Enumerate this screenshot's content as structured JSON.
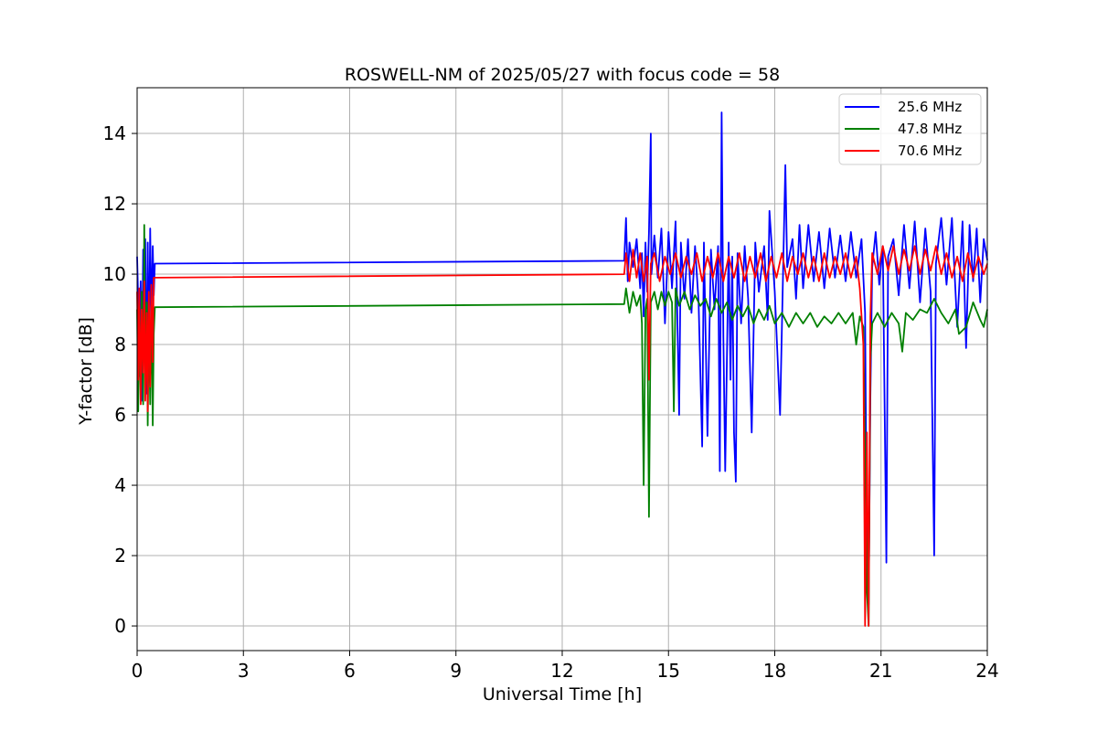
{
  "chart_data": {
    "type": "line",
    "title": "ROSWELL-NM of 2025/05/27 with focus code = 58",
    "xlabel": "Universal Time [h]",
    "ylabel": "Y-factor [dB]",
    "xlim": [
      0,
      24
    ],
    "ylim": [
      -0.7,
      15.3
    ],
    "xticks": [
      "0",
      "3",
      "6",
      "9",
      "12",
      "15",
      "18",
      "21",
      "24"
    ],
    "yticks": [
      "0",
      "2",
      "4",
      "6",
      "8",
      "10",
      "12",
      "14"
    ],
    "grid": true,
    "legend_position": "top-right",
    "series": [
      {
        "name": "25.6 MHz",
        "color": "#0000ff",
        "points": [
          [
            0.0,
            10.5
          ],
          [
            0.03,
            9.2
          ],
          [
            0.06,
            7.1
          ],
          [
            0.1,
            9.8
          ],
          [
            0.13,
            6.4
          ],
          [
            0.17,
            10.7
          ],
          [
            0.2,
            8.0
          ],
          [
            0.23,
            11.0
          ],
          [
            0.27,
            6.6
          ],
          [
            0.3,
            10.9
          ],
          [
            0.33,
            7.5
          ],
          [
            0.37,
            11.3
          ],
          [
            0.4,
            8.6
          ],
          [
            0.44,
            10.8
          ],
          [
            0.47,
            9.4
          ],
          [
            0.5,
            10.3
          ],
          [
            13.75,
            10.38
          ],
          [
            13.8,
            11.6
          ],
          [
            13.85,
            9.8
          ],
          [
            13.9,
            10.9
          ],
          [
            14.0,
            10.2
          ],
          [
            14.1,
            11.0
          ],
          [
            14.2,
            9.6
          ],
          [
            14.25,
            10.6
          ],
          [
            14.3,
            8.8
          ],
          [
            14.35,
            10.9
          ],
          [
            14.4,
            9.5
          ],
          [
            14.45,
            11.2
          ],
          [
            14.5,
            14.0
          ],
          [
            14.52,
            10.0
          ],
          [
            14.6,
            11.1
          ],
          [
            14.7,
            9.9
          ],
          [
            14.8,
            11.3
          ],
          [
            14.9,
            8.6
          ],
          [
            15.0,
            11.2
          ],
          [
            15.1,
            9.6
          ],
          [
            15.2,
            11.5
          ],
          [
            15.3,
            6.0
          ],
          [
            15.35,
            10.9
          ],
          [
            15.45,
            9.3
          ],
          [
            15.55,
            11.0
          ],
          [
            15.65,
            8.9
          ],
          [
            15.75,
            10.8
          ],
          [
            15.85,
            9.2
          ],
          [
            15.95,
            5.1
          ],
          [
            16.0,
            10.9
          ],
          [
            16.1,
            5.4
          ],
          [
            16.2,
            10.7
          ],
          [
            16.3,
            9.0
          ],
          [
            16.4,
            10.8
          ],
          [
            16.45,
            4.4
          ],
          [
            16.5,
            14.6
          ],
          [
            16.55,
            8.2
          ],
          [
            16.6,
            4.4
          ],
          [
            16.7,
            10.9
          ],
          [
            16.75,
            7.0
          ],
          [
            16.8,
            10.5
          ],
          [
            16.85,
            5.5
          ],
          [
            16.9,
            4.1
          ],
          [
            16.95,
            10.6
          ],
          [
            17.05,
            8.6
          ],
          [
            17.15,
            10.8
          ],
          [
            17.25,
            9.3
          ],
          [
            17.35,
            5.5
          ],
          [
            17.45,
            10.9
          ],
          [
            17.55,
            9.5
          ],
          [
            17.7,
            10.8
          ],
          [
            17.8,
            8.7
          ],
          [
            17.85,
            11.8
          ],
          [
            18.0,
            9.5
          ],
          [
            18.15,
            6.0
          ],
          [
            18.25,
            10.8
          ],
          [
            18.3,
            13.1
          ],
          [
            18.35,
            10.2
          ],
          [
            18.5,
            11.0
          ],
          [
            18.6,
            9.3
          ],
          [
            18.7,
            11.4
          ],
          [
            18.8,
            9.6
          ],
          [
            18.95,
            11.4
          ],
          [
            19.1,
            9.8
          ],
          [
            19.25,
            11.2
          ],
          [
            19.4,
            9.6
          ],
          [
            19.55,
            11.3
          ],
          [
            19.7,
            9.9
          ],
          [
            19.85,
            11.1
          ],
          [
            20.0,
            9.8
          ],
          [
            20.15,
            11.2
          ],
          [
            20.3,
            9.9
          ],
          [
            20.45,
            11.0
          ],
          [
            20.55,
            8.9
          ],
          [
            20.6,
            2.0
          ],
          [
            20.65,
            0.6
          ],
          [
            20.7,
            6.5
          ],
          [
            20.75,
            10.2
          ],
          [
            20.85,
            11.2
          ],
          [
            20.95,
            9.7
          ],
          [
            21.05,
            10.8
          ],
          [
            21.15,
            1.8
          ],
          [
            21.2,
            10.5
          ],
          [
            21.35,
            11.0
          ],
          [
            21.5,
            9.4
          ],
          [
            21.65,
            11.4
          ],
          [
            21.8,
            9.6
          ],
          [
            21.95,
            11.5
          ],
          [
            22.1,
            9.2
          ],
          [
            22.25,
            11.3
          ],
          [
            22.4,
            9.5
          ],
          [
            22.5,
            2.0
          ],
          [
            22.55,
            10.3
          ],
          [
            22.7,
            11.6
          ],
          [
            22.85,
            9.7
          ],
          [
            23.0,
            11.6
          ],
          [
            23.15,
            8.5
          ],
          [
            23.3,
            11.5
          ],
          [
            23.4,
            7.9
          ],
          [
            23.5,
            11.4
          ],
          [
            23.6,
            9.8
          ],
          [
            23.7,
            11.3
          ],
          [
            23.8,
            9.2
          ],
          [
            23.9,
            11.0
          ],
          [
            24.0,
            10.4
          ]
        ]
      },
      {
        "name": "47.8 MHz",
        "color": "#008000",
        "points": [
          [
            0.0,
            9.0
          ],
          [
            0.03,
            6.1
          ],
          [
            0.06,
            8.5
          ],
          [
            0.1,
            7.0
          ],
          [
            0.13,
            9.5
          ],
          [
            0.17,
            6.3
          ],
          [
            0.2,
            11.4
          ],
          [
            0.23,
            7.4
          ],
          [
            0.27,
            9.2
          ],
          [
            0.3,
            5.7
          ],
          [
            0.33,
            8.8
          ],
          [
            0.37,
            6.3
          ],
          [
            0.4,
            9.4
          ],
          [
            0.44,
            5.7
          ],
          [
            0.47,
            8.3
          ],
          [
            0.5,
            9.06
          ],
          [
            13.75,
            9.15
          ],
          [
            13.8,
            9.6
          ],
          [
            13.9,
            8.9
          ],
          [
            14.0,
            9.5
          ],
          [
            14.1,
            9.1
          ],
          [
            14.2,
            9.4
          ],
          [
            14.25,
            8.6
          ],
          [
            14.3,
            4.0
          ],
          [
            14.35,
            9.0
          ],
          [
            14.4,
            9.3
          ],
          [
            14.45,
            3.1
          ],
          [
            14.5,
            9.2
          ],
          [
            14.6,
            9.5
          ],
          [
            14.7,
            9.0
          ],
          [
            14.8,
            9.5
          ],
          [
            14.9,
            9.1
          ],
          [
            15.0,
            9.5
          ],
          [
            15.1,
            9.2
          ],
          [
            15.15,
            6.1
          ],
          [
            15.2,
            9.6
          ],
          [
            15.3,
            9.1
          ],
          [
            15.45,
            9.5
          ],
          [
            15.6,
            9.0
          ],
          [
            15.75,
            9.4
          ],
          [
            15.9,
            9.1
          ],
          [
            16.05,
            9.3
          ],
          [
            16.2,
            8.8
          ],
          [
            16.35,
            9.3
          ],
          [
            16.5,
            8.9
          ],
          [
            16.65,
            9.2
          ],
          [
            16.8,
            8.7
          ],
          [
            16.95,
            9.1
          ],
          [
            17.1,
            8.8
          ],
          [
            17.25,
            9.1
          ],
          [
            17.4,
            8.6
          ],
          [
            17.55,
            9.0
          ],
          [
            17.7,
            8.7
          ],
          [
            17.85,
            9.1
          ],
          [
            18.0,
            8.6
          ],
          [
            18.2,
            8.9
          ],
          [
            18.4,
            8.5
          ],
          [
            18.6,
            8.9
          ],
          [
            18.8,
            8.6
          ],
          [
            19.0,
            8.9
          ],
          [
            19.2,
            8.5
          ],
          [
            19.4,
            8.8
          ],
          [
            19.6,
            8.6
          ],
          [
            19.8,
            8.9
          ],
          [
            20.0,
            8.6
          ],
          [
            20.2,
            8.9
          ],
          [
            20.3,
            8.0
          ],
          [
            20.4,
            8.8
          ],
          [
            20.5,
            8.5
          ],
          [
            20.6,
            1.0
          ],
          [
            20.65,
            0.0
          ],
          [
            20.7,
            7.5
          ],
          [
            20.75,
            8.6
          ],
          [
            20.9,
            8.9
          ],
          [
            21.1,
            8.5
          ],
          [
            21.3,
            8.9
          ],
          [
            21.5,
            8.6
          ],
          [
            21.6,
            7.8
          ],
          [
            21.7,
            8.9
          ],
          [
            21.9,
            8.7
          ],
          [
            22.1,
            9.0
          ],
          [
            22.3,
            8.9
          ],
          [
            22.5,
            9.3
          ],
          [
            22.7,
            8.9
          ],
          [
            22.9,
            8.6
          ],
          [
            23.1,
            9.0
          ],
          [
            23.2,
            8.3
          ],
          [
            23.4,
            8.5
          ],
          [
            23.6,
            9.2
          ],
          [
            23.8,
            8.7
          ],
          [
            23.9,
            8.5
          ],
          [
            24.0,
            9.0
          ]
        ]
      },
      {
        "name": "70.6 MHz",
        "color": "#ff0000",
        "points": [
          [
            0.0,
            9.5
          ],
          [
            0.03,
            7.0
          ],
          [
            0.06,
            9.6
          ],
          [
            0.1,
            6.3
          ],
          [
            0.13,
            9.0
          ],
          [
            0.17,
            7.2
          ],
          [
            0.2,
            9.8
          ],
          [
            0.23,
            6.4
          ],
          [
            0.27,
            8.9
          ],
          [
            0.3,
            6.1
          ],
          [
            0.33,
            9.5
          ],
          [
            0.37,
            6.8
          ],
          [
            0.4,
            9.7
          ],
          [
            0.44,
            7.5
          ],
          [
            0.47,
            9.9
          ],
          [
            0.5,
            9.9
          ],
          [
            13.75,
            10.0
          ],
          [
            13.8,
            10.6
          ],
          [
            13.9,
            9.8
          ],
          [
            14.0,
            10.7
          ],
          [
            14.1,
            9.9
          ],
          [
            14.2,
            10.6
          ],
          [
            14.3,
            9.8
          ],
          [
            14.4,
            10.5
          ],
          [
            14.45,
            7.0
          ],
          [
            14.5,
            10.3
          ],
          [
            14.6,
            10.6
          ],
          [
            14.75,
            9.8
          ],
          [
            14.9,
            10.5
          ],
          [
            15.05,
            10.0
          ],
          [
            15.2,
            10.6
          ],
          [
            15.35,
            9.9
          ],
          [
            15.5,
            10.5
          ],
          [
            15.65,
            10.0
          ],
          [
            15.8,
            10.6
          ],
          [
            15.95,
            9.8
          ],
          [
            16.1,
            10.5
          ],
          [
            16.25,
            9.9
          ],
          [
            16.4,
            10.6
          ],
          [
            16.55,
            9.8
          ],
          [
            16.7,
            10.5
          ],
          [
            16.85,
            9.9
          ],
          [
            17.0,
            10.6
          ],
          [
            17.15,
            9.8
          ],
          [
            17.3,
            10.5
          ],
          [
            17.45,
            9.9
          ],
          [
            17.6,
            10.6
          ],
          [
            17.75,
            9.8
          ],
          [
            17.9,
            10.5
          ],
          [
            18.05,
            9.9
          ],
          [
            18.2,
            10.6
          ],
          [
            18.35,
            9.8
          ],
          [
            18.5,
            10.5
          ],
          [
            18.65,
            10.0
          ],
          [
            18.8,
            10.6
          ],
          [
            18.95,
            9.9
          ],
          [
            19.1,
            10.5
          ],
          [
            19.25,
            9.8
          ],
          [
            19.4,
            10.6
          ],
          [
            19.55,
            9.9
          ],
          [
            19.7,
            10.5
          ],
          [
            19.85,
            10.0
          ],
          [
            20.0,
            10.6
          ],
          [
            20.15,
            9.9
          ],
          [
            20.3,
            10.5
          ],
          [
            20.4,
            9.6
          ],
          [
            20.5,
            8.0
          ],
          [
            20.55,
            0.0
          ],
          [
            20.6,
            5.5
          ],
          [
            20.65,
            0.0
          ],
          [
            20.7,
            8.8
          ],
          [
            20.75,
            10.6
          ],
          [
            20.9,
            10.0
          ],
          [
            21.05,
            10.8
          ],
          [
            21.2,
            10.1
          ],
          [
            21.35,
            10.8
          ],
          [
            21.5,
            10.0
          ],
          [
            21.65,
            10.7
          ],
          [
            21.8,
            10.1
          ],
          [
            21.95,
            10.8
          ],
          [
            22.1,
            10.0
          ],
          [
            22.25,
            10.7
          ],
          [
            22.4,
            10.1
          ],
          [
            22.55,
            10.8
          ],
          [
            22.7,
            10.0
          ],
          [
            22.85,
            10.6
          ],
          [
            23.0,
            9.9
          ],
          [
            23.15,
            10.5
          ],
          [
            23.3,
            9.8
          ],
          [
            23.45,
            10.6
          ],
          [
            23.6,
            9.9
          ],
          [
            23.75,
            10.5
          ],
          [
            23.9,
            10.0
          ],
          [
            24.0,
            10.3
          ]
        ]
      }
    ]
  }
}
